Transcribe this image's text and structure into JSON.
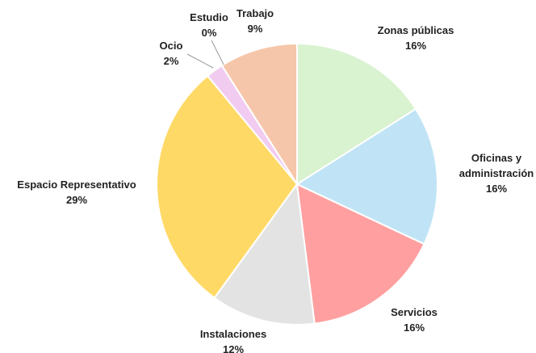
{
  "chart_data": {
    "type": "pie",
    "categories": [
      "Zonas públicas",
      "Oficinas y administración",
      "Servicios",
      "Instalaciones",
      "Espacio Representativo",
      "Ocio",
      "Estudio",
      "Trabajo"
    ],
    "values": [
      16,
      16,
      16,
      12,
      29,
      2,
      0,
      9
    ],
    "value_labels": [
      "16%",
      "16%",
      "16%",
      "12%",
      "29%",
      "2%",
      "0%",
      "9%"
    ],
    "colors": [
      "#d9f2d0",
      "#c0e4f5",
      "#ff9f9f",
      "#e3e3e3",
      "#ffd966",
      "#f2ccf0",
      "#c9b3e6",
      "#f6c6aa"
    ]
  }
}
